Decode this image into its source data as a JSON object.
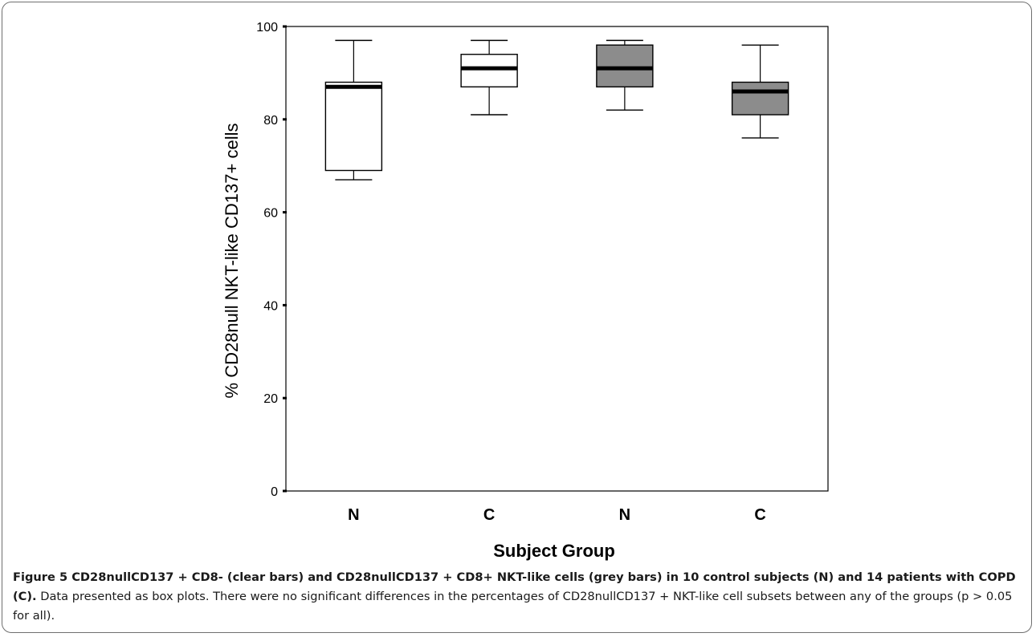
{
  "figure": {
    "caption_title": "Figure 5 CD28nullCD137 + CD8- (clear bars) and CD28nullCD137 + CD8+ NKT-like cells (grey bars) in 10 control subjects (N) and 14 patients with COPD (C).",
    "caption_body": " Data presented as box plots. There were no significant differences in the percentages of CD28nullCD137 + NKT-like cell subsets between any of the groups (p > 0.05 for all)."
  },
  "chart_data": {
    "type": "box",
    "ylabel": "% CD28null NKT-like CD137+ cells",
    "xlabel": "Subject Group",
    "ylim": [
      0,
      100
    ],
    "yticks": [
      0,
      20,
      40,
      60,
      80,
      100
    ],
    "grid": false,
    "boxes": [
      {
        "category": "N",
        "fill": "#ffffff",
        "min": 67,
        "q1": 69,
        "median": 87,
        "q3": 88,
        "max": 97
      },
      {
        "category": "C",
        "fill": "#ffffff",
        "min": 81,
        "q1": 87,
        "median": 91,
        "q3": 94,
        "max": 97
      },
      {
        "category": "N",
        "fill": "#8c8c8c",
        "min": 82,
        "q1": 87,
        "median": 91,
        "q3": 96,
        "max": 97
      },
      {
        "category": "C",
        "fill": "#8c8c8c",
        "min": 76,
        "q1": 81,
        "median": 86,
        "q3": 88,
        "max": 96
      }
    ]
  }
}
